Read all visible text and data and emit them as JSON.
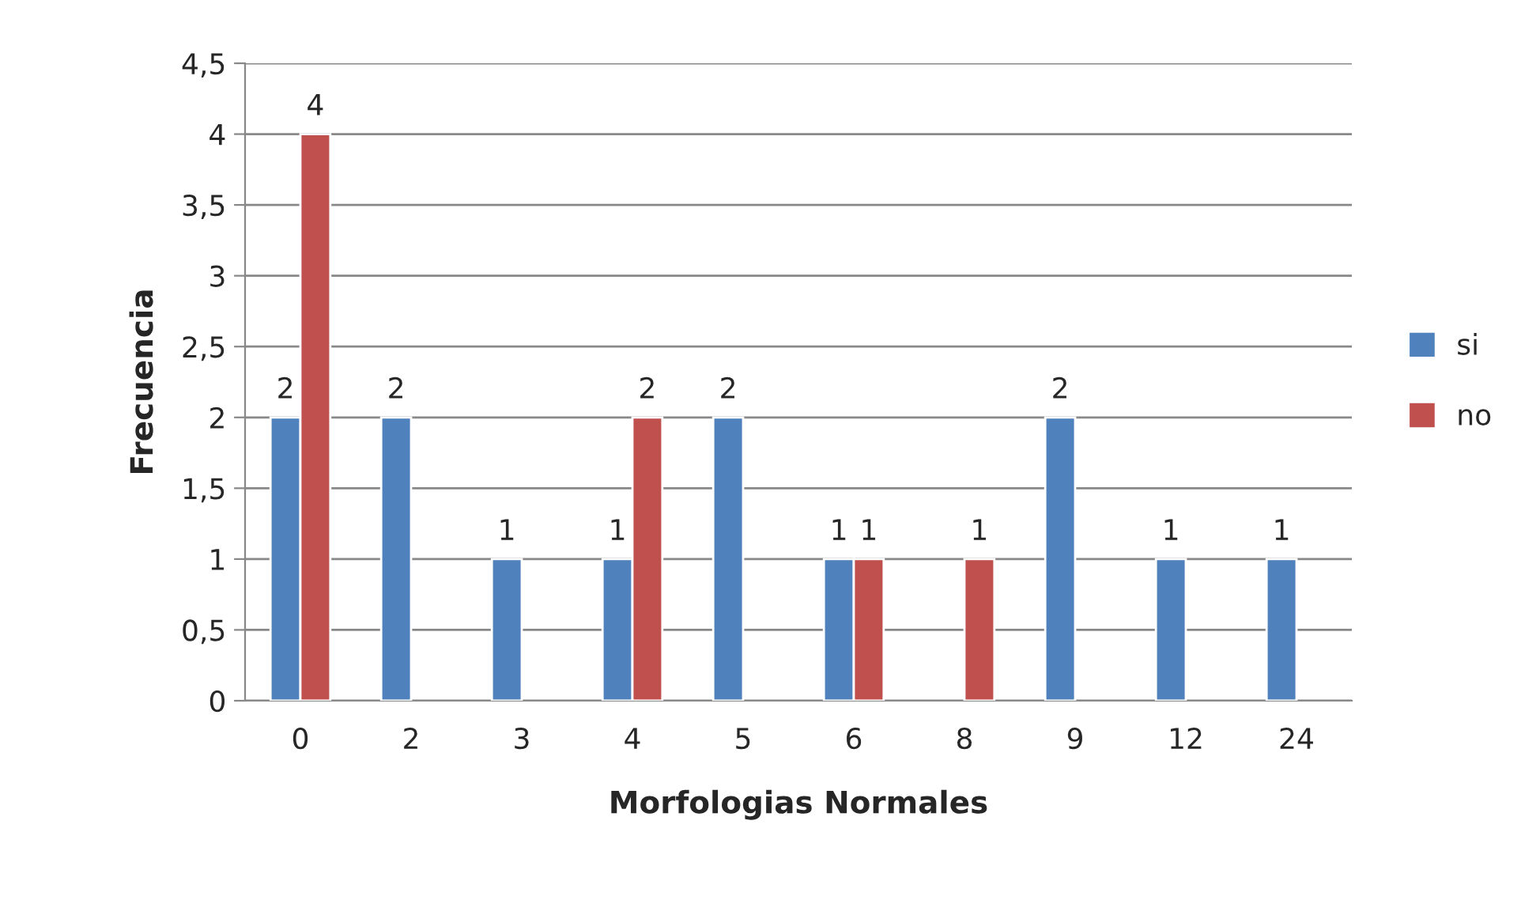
{
  "chart_data": {
    "type": "bar",
    "xlabel": "Morfologias Normales",
    "ylabel": "Frecuencia",
    "categories": [
      "0",
      "2",
      "3",
      "4",
      "5",
      "6",
      "8",
      "9",
      "12",
      "24"
    ],
    "series": [
      {
        "name": "si",
        "color": "#4f81bd",
        "values": [
          2,
          2,
          1,
          1,
          2,
          1,
          null,
          2,
          1,
          1
        ]
      },
      {
        "name": "no",
        "color": "#c0504d",
        "values": [
          4,
          null,
          null,
          2,
          null,
          1,
          1,
          null,
          null,
          null
        ]
      }
    ],
    "ylim": [
      0,
      4.5
    ],
    "yticks": [
      0,
      {
        "value": 0.5,
        "label": "0,5"
      },
      1,
      {
        "value": 1.5,
        "label": "1,5"
      },
      2,
      {
        "value": 2.5,
        "label": "2,5"
      },
      3,
      {
        "value": 3.5,
        "label": "3,5"
      },
      4,
      {
        "value": 4.5,
        "label": "4,5"
      }
    ],
    "grid": "y",
    "legend": "right",
    "data_labels": true
  }
}
